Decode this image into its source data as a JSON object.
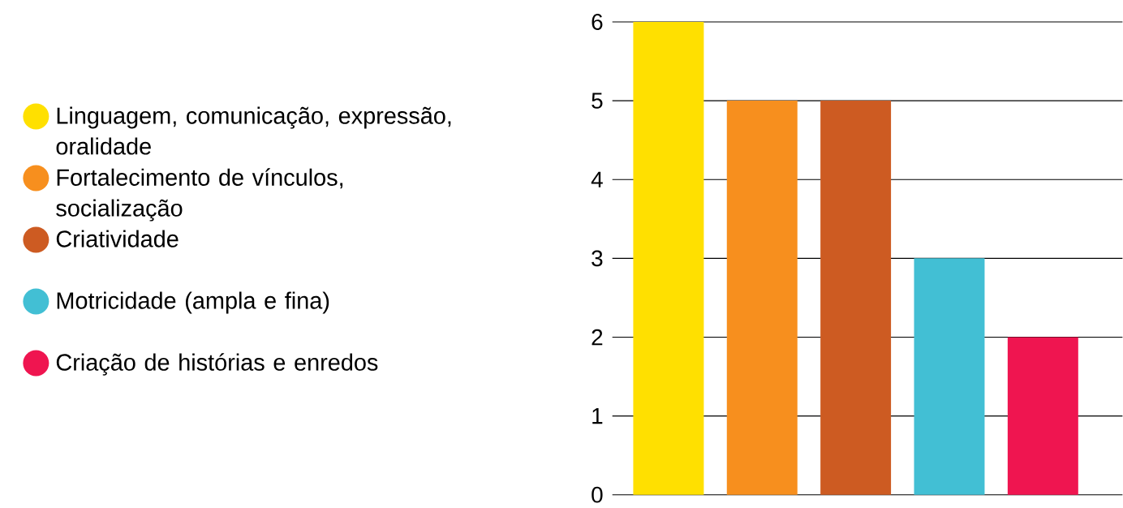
{
  "chart_data": {
    "type": "bar",
    "categories": [
      null,
      null,
      null,
      null,
      null
    ],
    "series": [
      {
        "name": "Linguagem, comunicação, expressão, oralidade",
        "color": "#ffe000",
        "values": [
          6,
          null,
          null,
          null,
          null
        ]
      },
      {
        "name": "Fortalecimento de vínculos, socialização",
        "color": "#f78f1e",
        "values": [
          null,
          5,
          null,
          null,
          null
        ]
      },
      {
        "name": "Criatividade",
        "color": "#cd5b22",
        "values": [
          null,
          null,
          5,
          null,
          null
        ]
      },
      {
        "name": "Motricidade (ampla e fina)",
        "color": "#42bfd4",
        "values": [
          null,
          null,
          null,
          3,
          null
        ]
      },
      {
        "name": "Criação de histórias e enredos",
        "color": "#ef1550",
        "values": [
          null,
          null,
          null,
          null,
          2
        ]
      }
    ],
    "ylim": [
      0,
      6
    ],
    "yticks": [
      0,
      1,
      2,
      3,
      4,
      5,
      6
    ],
    "grid": "y",
    "legend": "left",
    "tick_labels": "y"
  }
}
